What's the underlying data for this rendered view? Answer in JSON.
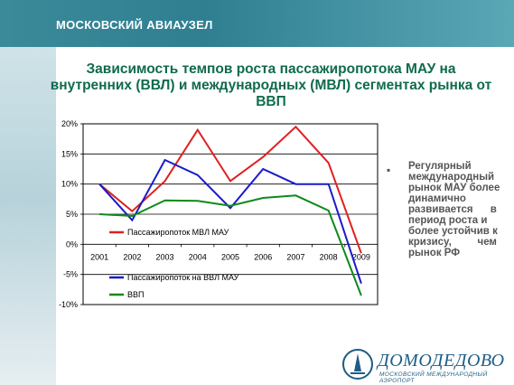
{
  "header": {
    "title": "МОСКОВСКИЙ АВИАУЗЕЛ"
  },
  "slide": {
    "title_lines": [
      "Зависимость темпов роста пассажиропотока МАУ на",
      "внутренних (ВВЛ) и международных (МВЛ) сегментах рынка от",
      "ВВП"
    ]
  },
  "bullet": {
    "lines": [
      "Регулярный",
      "международный",
      "рынок МАУ более",
      "динамично",
      "развивается      в",
      "период роста и",
      "более устойчив к",
      "кризису,         чем",
      "рынок РФ"
    ]
  },
  "logo": {
    "name": "ДОМОДЕДОВО",
    "subtitle": "МОСКОВСКИЙ МЕЖДУНАРОДНЫЙ АЭРОПОРТ",
    "color": "#1d5d86"
  },
  "colors": {
    "title": "#0f6b4b",
    "header_text": "#ffffff"
  },
  "chart_data": {
    "type": "line",
    "title": "",
    "xlabel": "",
    "ylabel": "",
    "categories": [
      "2001",
      "2002",
      "2003",
      "2004",
      "2005",
      "2006",
      "2007",
      "2008",
      "2009"
    ],
    "ylim": [
      -10,
      20
    ],
    "y_ticks": [
      "20%",
      "15%",
      "10%",
      "5%",
      "0%",
      "-5%",
      "-10%"
    ],
    "y_tick_values": [
      20,
      15,
      10,
      5,
      0,
      -5,
      -10
    ],
    "grid": true,
    "legend_position": "inside, stacked (red top-left, blue and green lower-left)",
    "series": [
      {
        "name": "Пассажиропоток  МВЛ МАУ",
        "color": "#e02020",
        "values": [
          10,
          5.5,
          10.5,
          19,
          10.5,
          14.5,
          19.5,
          13.5,
          -1.5
        ]
      },
      {
        "name": "Пассажиропоток на ВВЛ МАУ",
        "color": "#1a1acc",
        "values": [
          10,
          4,
          14,
          11.5,
          6,
          12.5,
          10,
          10,
          -6.5
        ]
      },
      {
        "name": "ВВП",
        "color": "#0e8a1a",
        "values": [
          5,
          4.7,
          7.3,
          7.2,
          6.4,
          7.7,
          8.1,
          5.6,
          -8.5
        ]
      }
    ]
  }
}
